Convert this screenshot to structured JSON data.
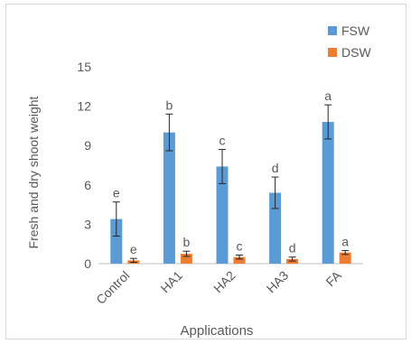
{
  "chart_data": {
    "type": "bar",
    "title": "",
    "xlabel": "Applications",
    "ylabel": "Fresh and dry shoot weight",
    "categories": [
      "Control",
      "HA1",
      "HA2",
      "HA3",
      "FA"
    ],
    "ylim": [
      0,
      15
    ],
    "yticks": [
      0,
      3,
      6,
      9,
      12,
      15
    ],
    "grid": false,
    "legend_position": "top-right",
    "series": [
      {
        "name": "FSW",
        "color": "#5B9BD5",
        "values": [
          3.4,
          10.0,
          7.4,
          5.4,
          10.8
        ],
        "errors": [
          1.3,
          1.4,
          1.3,
          1.2,
          1.3
        ],
        "letters": [
          "e",
          "b",
          "c",
          "d",
          "a"
        ]
      },
      {
        "name": "DSW",
        "color": "#ED7D31",
        "values": [
          0.25,
          0.75,
          0.5,
          0.35,
          0.85
        ],
        "errors": [
          0.15,
          0.2,
          0.15,
          0.15,
          0.15
        ],
        "letters": [
          "e",
          "b",
          "c",
          "d",
          "a"
        ]
      }
    ]
  }
}
